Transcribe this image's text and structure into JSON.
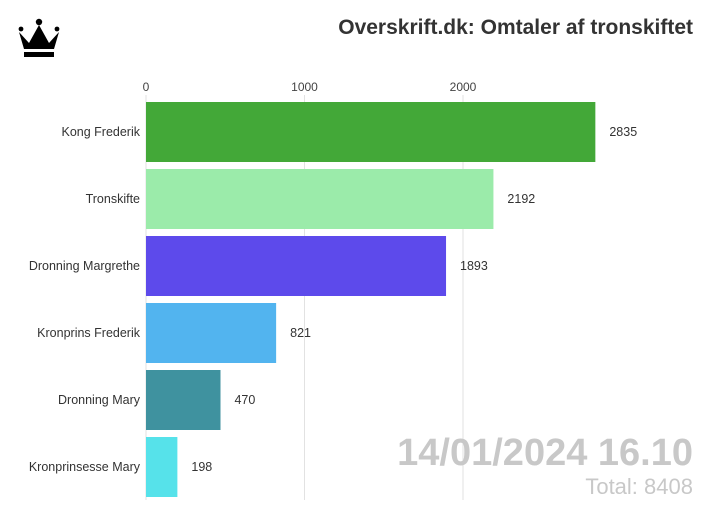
{
  "title": "Overskrift.dk: Omtaler af tronskiftet",
  "logo_icon": "crown-icon",
  "date_stamp": "14/01/2024 16.10",
  "total": {
    "label": "Total:",
    "value": "8408"
  },
  "chart_data": {
    "type": "bar",
    "orientation": "horizontal",
    "categories": [
      "Kong Frederik",
      "Tronskifte",
      "Dronning Margrethe",
      "Kronprins Frederik",
      "Dronning Mary",
      "Kronprinsesse Mary"
    ],
    "values": [
      2835,
      2192,
      1893,
      821,
      470,
      198
    ],
    "colors": [
      "#43a838",
      "#9bebaa",
      "#5d4aeb",
      "#52b4ef",
      "#3f929f",
      "#56e2ea"
    ],
    "xticks": [
      0,
      1000,
      2000
    ],
    "xlim": [
      0,
      3000
    ],
    "grid": true,
    "axis_position": "top"
  }
}
